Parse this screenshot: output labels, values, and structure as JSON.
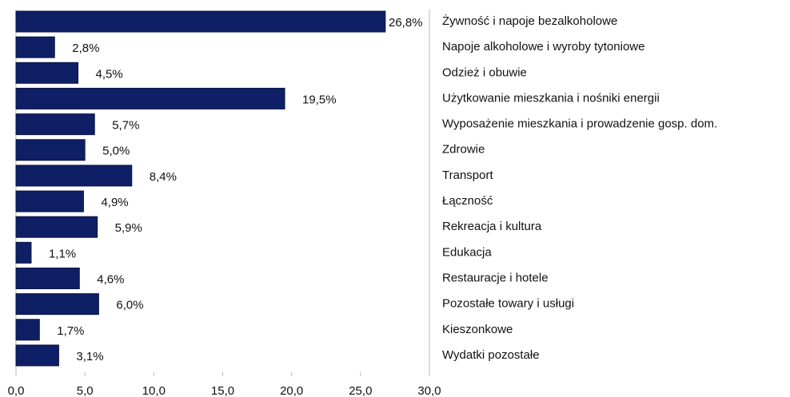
{
  "chart_data": {
    "type": "bar",
    "orientation": "horizontal",
    "categories": [
      "Żywność i napoje bezalkoholowe",
      "Napoje alkoholowe i wyroby tytoniowe",
      "Odzież i obuwie",
      "Użytkowanie mieszkania i nośniki energii",
      "Wyposażenie mieszkania i prowadzenie gosp. dom.",
      "Zdrowie",
      "Transport",
      "Łączność",
      "Rekreacja i kultura",
      "Edukacja",
      "Restauracje i hotele",
      "Pozostałe towary i usługi",
      "Kieszonkowe",
      "Wydatki pozostałe"
    ],
    "values": [
      26.8,
      2.8,
      4.5,
      19.5,
      5.7,
      5.0,
      8.4,
      4.9,
      5.9,
      1.1,
      4.6,
      6.0,
      1.7,
      3.1
    ],
    "value_labels": [
      "26,8%",
      "2,8%",
      "4,5%",
      "19,5%",
      "5,7%",
      "5,0%",
      "8,4%",
      "4,9%",
      "5,9%",
      "1,1%",
      "4,6%",
      "6,0%",
      "1,7%",
      "3,1%"
    ],
    "color": "#0f1f66",
    "xlim": [
      0,
      30
    ],
    "xticks": [
      {
        "value": 0,
        "label": "0,0"
      },
      {
        "value": 5,
        "label": "5,0"
      },
      {
        "value": 10,
        "label": "10,0"
      },
      {
        "value": 15,
        "label": "15,0"
      },
      {
        "value": 20,
        "label": "20,0"
      },
      {
        "value": 25,
        "label": "25,0"
      },
      {
        "value": 30,
        "label": "30,0"
      }
    ]
  }
}
